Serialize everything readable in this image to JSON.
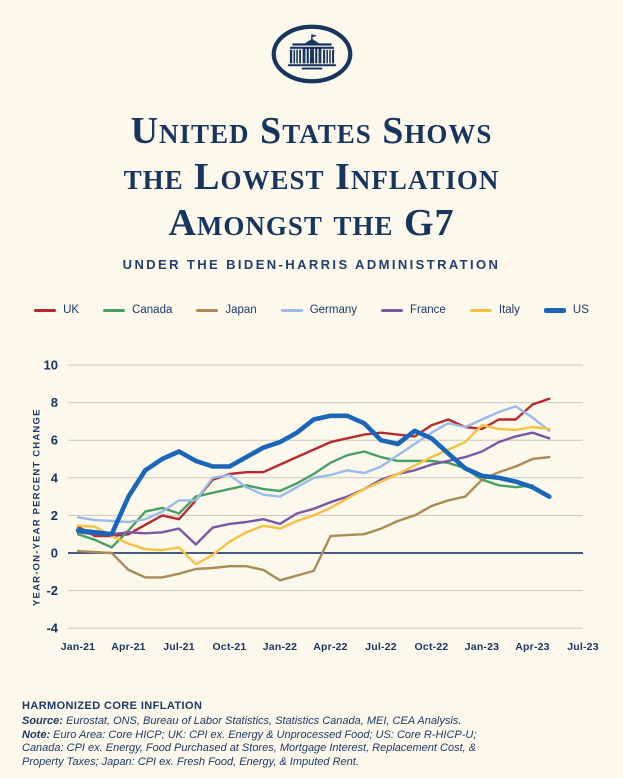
{
  "page": {
    "background": "#fcf8eb",
    "navy": "#17355f",
    "grid_color": "#cbc8bd",
    "zero_line_color": "#2a4570"
  },
  "logo": {
    "name": "white-house-logo"
  },
  "title": {
    "line1": "United States Shows",
    "line2": "the Lowest Inflation",
    "line3": "Amongst the G7"
  },
  "subtitle": "UNDER THE BIDEN-HARRIS ADMINISTRATION",
  "chart_data": {
    "type": "line",
    "title": "United States Shows the Lowest Inflation Amongst the G7",
    "xlabel": "",
    "ylabel": "YEAR-ON-YEAR PERCENT CHANGE",
    "ylim": [
      -4,
      10
    ],
    "y_ticks": [
      10,
      8,
      6,
      4,
      2,
      0,
      -2,
      -4
    ],
    "grid": true,
    "legend_position": "top",
    "x_start_month": "Jan-21",
    "x_tick_labels": [
      "Jan-21",
      "Apr-21",
      "Jul-21",
      "Oct-21",
      "Jan-22",
      "Apr-22",
      "Jul-22",
      "Oct-22",
      "Jan-23",
      "Apr-23",
      "Jul-23"
    ],
    "x_tick_month_indices": [
      0,
      3,
      6,
      9,
      12,
      15,
      18,
      21,
      24,
      27,
      30
    ],
    "series": [
      {
        "name": "UK",
        "color": "#b52b30",
        "width": 2.4,
        "values": [
          1.4,
          0.9,
          0.9,
          1.0,
          1.5,
          2.0,
          1.8,
          2.8,
          3.9,
          4.2,
          4.3,
          4.3,
          4.7,
          5.1,
          5.5,
          5.9,
          6.1,
          6.3,
          6.4,
          6.3,
          6.2,
          6.8,
          7.1,
          6.7,
          6.6,
          7.1,
          7.1,
          7.9,
          8.2
        ]
      },
      {
        "name": "Canada",
        "color": "#47a164",
        "width": 2.4,
        "values": [
          1.0,
          0.7,
          0.3,
          1.2,
          2.2,
          2.4,
          2.1,
          3.0,
          3.2,
          3.4,
          3.6,
          3.4,
          3.3,
          3.7,
          4.2,
          4.8,
          5.2,
          5.4,
          5.1,
          4.9,
          4.9,
          4.9,
          4.8,
          4.5,
          3.9,
          3.6,
          3.5,
          3.6
        ]
      },
      {
        "name": "Japan",
        "color": "#ab8b55",
        "width": 2.4,
        "values": [
          0.1,
          0.05,
          0.0,
          -0.9,
          -1.3,
          -1.3,
          -1.1,
          -0.85,
          -0.8,
          -0.7,
          -0.7,
          -0.9,
          -1.45,
          -1.2,
          -0.95,
          0.9,
          0.95,
          1.0,
          1.3,
          1.7,
          2.0,
          2.5,
          2.8,
          3.0,
          3.9,
          4.3,
          4.6,
          5.0,
          5.1
        ]
      },
      {
        "name": "Germany",
        "color": "#98bce9",
        "width": 2.4,
        "values": [
          1.9,
          1.75,
          1.7,
          1.65,
          1.8,
          2.2,
          2.8,
          2.8,
          4.0,
          4.15,
          3.5,
          3.1,
          3.0,
          3.5,
          4.0,
          4.15,
          4.4,
          4.25,
          4.6,
          5.2,
          5.8,
          6.4,
          6.9,
          6.7,
          7.1,
          7.5,
          7.8,
          7.2,
          6.5
        ]
      },
      {
        "name": "France",
        "color": "#7b57a5",
        "width": 2.4,
        "values": [
          1.1,
          1.0,
          1.0,
          1.1,
          1.05,
          1.1,
          1.3,
          0.45,
          1.35,
          1.55,
          1.65,
          1.8,
          1.55,
          2.1,
          2.35,
          2.7,
          3.0,
          3.4,
          3.9,
          4.2,
          4.4,
          4.7,
          4.9,
          5.1,
          5.4,
          5.9,
          6.2,
          6.4,
          6.1
        ]
      },
      {
        "name": "Italy",
        "color": "#f6c143",
        "width": 2.4,
        "values": [
          1.45,
          1.4,
          0.9,
          0.5,
          0.2,
          0.15,
          0.3,
          -0.6,
          -0.1,
          0.6,
          1.1,
          1.45,
          1.3,
          1.7,
          2.0,
          2.4,
          2.9,
          3.4,
          3.8,
          4.2,
          4.65,
          5.1,
          5.5,
          5.9,
          6.8,
          6.6,
          6.55,
          6.7,
          6.6
        ]
      },
      {
        "name": "US",
        "color": "#1a66b8",
        "width": 4.6,
        "values": [
          1.2,
          1.1,
          1.0,
          3.0,
          4.4,
          5.0,
          5.4,
          4.9,
          4.6,
          4.6,
          5.1,
          5.6,
          5.9,
          6.4,
          7.1,
          7.3,
          7.3,
          6.9,
          6.0,
          5.8,
          6.5,
          6.1,
          5.3,
          4.5,
          4.1,
          4.0,
          3.8,
          3.5,
          3.0
        ]
      }
    ]
  },
  "footer": {
    "heading": "HARMONIZED CORE INFLATION",
    "source_label": "Source:",
    "source_text": " Eurostat, ONS, Bureau of Labor Statistics, Statistics Canada, MEI, CEA Analysis.",
    "note_label": "Note:",
    "note_text": " Euro Area: Core HICP; UK: CPI ex. Energy & Unprocessed Food; US: Core R-HICP-U; Canada: CPI ex. Energy, Food Purchased at Stores, Mortgage Interest, Replacement Cost, & Property Taxes; Japan: CPI ex. Fresh Food, Energy, & Imputed Rent."
  }
}
